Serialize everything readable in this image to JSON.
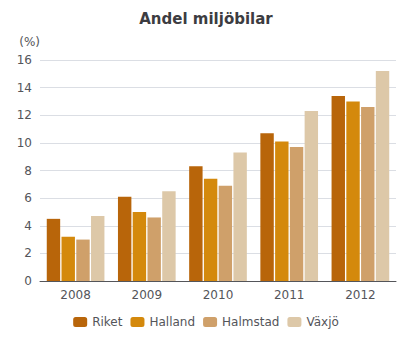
{
  "chart_data": {
    "type": "bar",
    "title": "Andel miljöbilar",
    "ylabel": "(%)",
    "categories": [
      "2008",
      "2009",
      "2010",
      "2011",
      "2012"
    ],
    "series": [
      {
        "name": "Riket",
        "color": "#B8650A",
        "values": [
          4.5,
          6.1,
          8.3,
          10.7,
          13.4
        ]
      },
      {
        "name": "Halland",
        "color": "#D4890C",
        "values": [
          3.2,
          5.0,
          7.4,
          10.1,
          13.0
        ]
      },
      {
        "name": "Halmstad",
        "color": "#CFA06A",
        "values": [
          3.0,
          4.6,
          6.9,
          9.7,
          12.6
        ]
      },
      {
        "name": "Växjö",
        "color": "#DDC8A8",
        "values": [
          4.7,
          6.5,
          9.3,
          12.3,
          15.2
        ]
      }
    ],
    "ylim": [
      0,
      16
    ],
    "yticks": [
      0,
      2,
      4,
      6,
      8,
      10,
      12,
      14,
      16
    ],
    "grid": true,
    "legend": "bottom"
  }
}
